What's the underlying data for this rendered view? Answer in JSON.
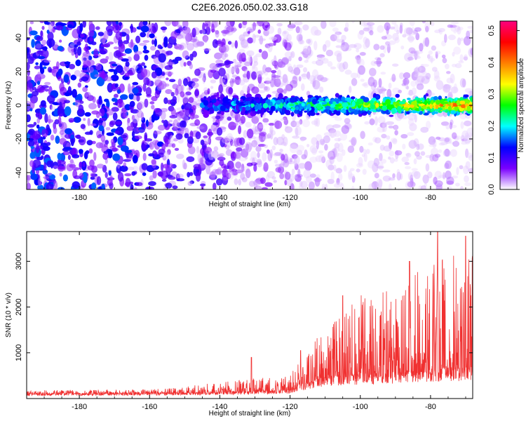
{
  "title": "C2E6.2026.050.02.33.G18",
  "chart_data": [
    {
      "type": "heatmap",
      "xlabel": "Height of straight line (km)",
      "ylabel": "Frequency (Hz)",
      "xlim": [
        -195,
        -68
      ],
      "ylim": [
        -50,
        50
      ],
      "x_ticks": [
        -180,
        -160,
        -140,
        -120,
        -100,
        -80
      ],
      "x_tick_labels": [
        "-180",
        "-160",
        "-140",
        "-120",
        "-100",
        "-80"
      ],
      "y_ticks": [
        -40,
        -20,
        0,
        20,
        40
      ],
      "y_tick_labels": [
        "-40",
        "-20",
        "0",
        "20",
        "40"
      ],
      "colorbar": {
        "label": "Normalized spectral amplitude",
        "range": [
          0,
          0.53
        ],
        "ticks": [
          0.0,
          0.1,
          0.2,
          0.3,
          0.4,
          0.5
        ],
        "tick_labels": [
          "0.0",
          "0.1",
          "0.2",
          "0.3",
          "0.4",
          "0.5"
        ],
        "colormap": [
          "#ffffff",
          "#7a00ff",
          "#0000ff",
          "#00ffff",
          "#00ff00",
          "#ffff00",
          "#ff7f00",
          "#ff0000",
          "#ff007f"
        ]
      },
      "signal_band": {
        "x_start": -145,
        "x_end": -68,
        "freq_center": 0,
        "freq_halfwidth": 7,
        "peak_amplitude": 0.5
      }
    },
    {
      "type": "line",
      "xlabel": "Height of straight line (km)",
      "ylabel": "SNR (10 * v/v)",
      "xlim": [
        -195,
        -68
      ],
      "ylim": [
        0,
        3650
      ],
      "x_ticks": [
        -180,
        -160,
        -140,
        -120,
        -100,
        -80
      ],
      "x_tick_labels": [
        "-180",
        "-160",
        "-140",
        "-120",
        "-100",
        "-80"
      ],
      "y_ticks": [
        1000,
        2000,
        3000
      ],
      "y_tick_labels": [
        "1000",
        "2000",
        "3000"
      ],
      "line_color": "#f03030",
      "envelope": [
        {
          "x": -195,
          "base": 100,
          "peak": 180
        },
        {
          "x": -160,
          "base": 110,
          "peak": 200
        },
        {
          "x": -150,
          "base": 120,
          "peak": 260
        },
        {
          "x": -135,
          "base": 140,
          "peak": 420
        },
        {
          "x": -120,
          "base": 180,
          "peak": 500
        },
        {
          "x": -116,
          "base": 300,
          "peak": 1000
        },
        {
          "x": -110,
          "base": 450,
          "peak": 1600
        },
        {
          "x": -100,
          "base": 500,
          "peak": 2300
        },
        {
          "x": -90,
          "base": 550,
          "peak": 2400
        },
        {
          "x": -80,
          "base": 600,
          "peak": 3100
        },
        {
          "x": -68,
          "base": 650,
          "peak": 3300
        }
      ],
      "peaks": [
        {
          "x": -131,
          "y": 900
        },
        {
          "x": -117,
          "y": 1050
        },
        {
          "x": -105,
          "y": 2250
        },
        {
          "x": -86,
          "y": 3000
        },
        {
          "x": -78,
          "y": 3650
        },
        {
          "x": -70,
          "y": 3550
        }
      ]
    }
  ]
}
